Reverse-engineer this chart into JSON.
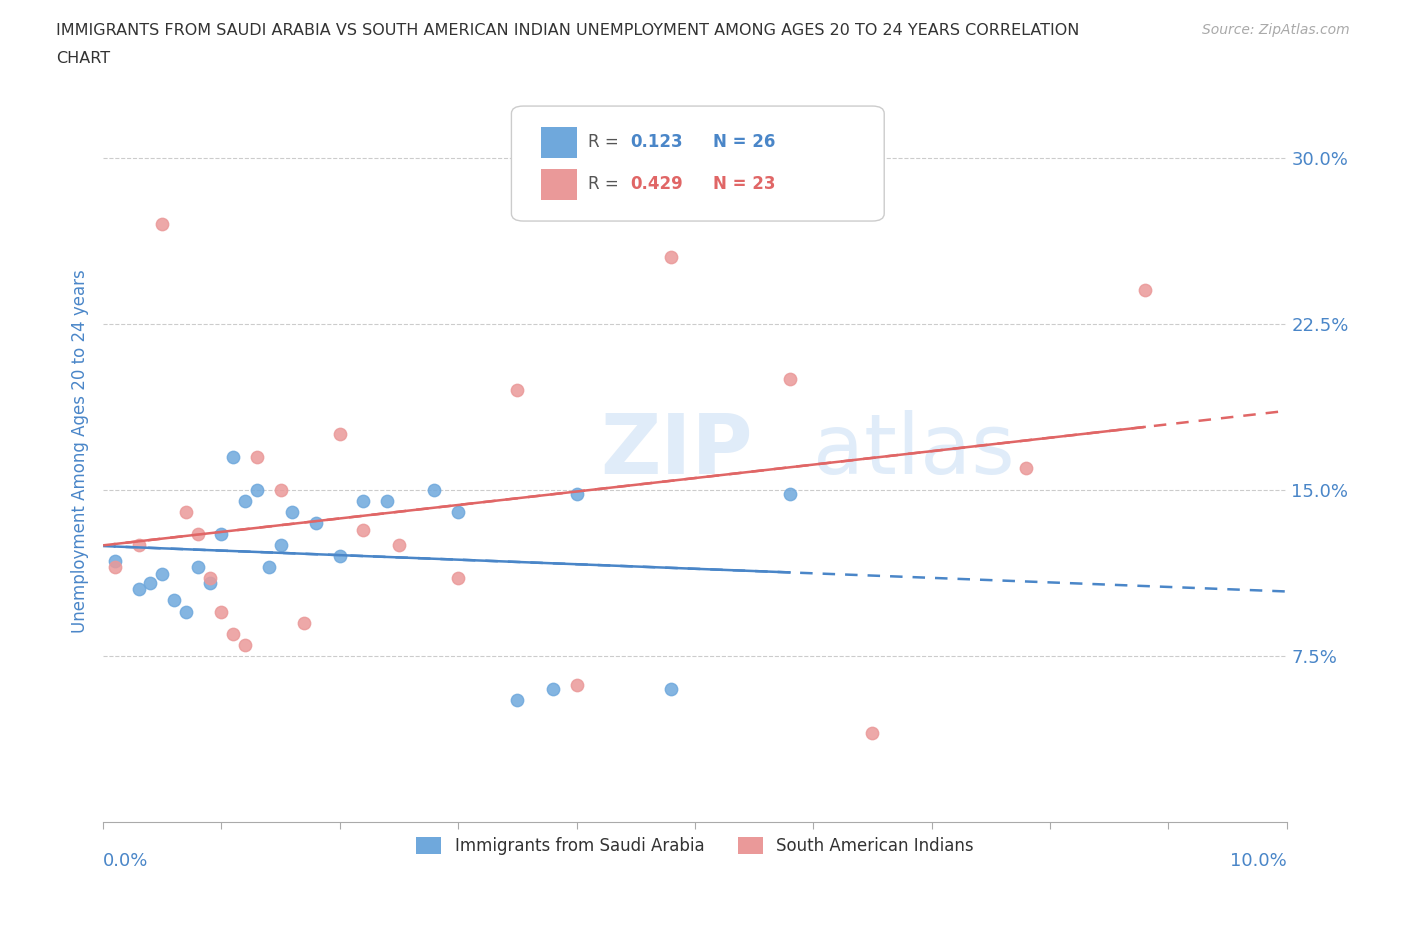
{
  "title_line1": "IMMIGRANTS FROM SAUDI ARABIA VS SOUTH AMERICAN INDIAN UNEMPLOYMENT AMONG AGES 20 TO 24 YEARS CORRELATION",
  "title_line2": "CHART",
  "source": "Source: ZipAtlas.com",
  "ylabel": "Unemployment Among Ages 20 to 24 years",
  "yticks": [
    0.075,
    0.15,
    0.225,
    0.3
  ],
  "ytick_labels": [
    "7.5%",
    "15.0%",
    "22.5%",
    "30.0%"
  ],
  "xlim": [
    0.0,
    0.1
  ],
  "ylim": [
    0.0,
    0.335
  ],
  "legend_v1": "0.123",
  "legend_n1": "N = 26",
  "legend_v2": "0.429",
  "legend_n2": "N = 23",
  "color_blue": "#6fa8dc",
  "color_pink": "#ea9999",
  "color_line_blue": "#4a86c8",
  "color_line_pink": "#e06666",
  "color_axis_label": "#4a86c8",
  "saudi_x": [
    0.001,
    0.003,
    0.004,
    0.005,
    0.006,
    0.007,
    0.008,
    0.009,
    0.01,
    0.011,
    0.012,
    0.013,
    0.014,
    0.015,
    0.016,
    0.018,
    0.02,
    0.022,
    0.024,
    0.028,
    0.03,
    0.035,
    0.038,
    0.04,
    0.048,
    0.058
  ],
  "saudi_y": [
    0.118,
    0.105,
    0.108,
    0.112,
    0.1,
    0.095,
    0.115,
    0.108,
    0.13,
    0.165,
    0.145,
    0.15,
    0.115,
    0.125,
    0.14,
    0.135,
    0.12,
    0.145,
    0.145,
    0.15,
    0.14,
    0.055,
    0.06,
    0.148,
    0.06,
    0.148
  ],
  "indian_x": [
    0.001,
    0.003,
    0.005,
    0.007,
    0.008,
    0.009,
    0.01,
    0.011,
    0.012,
    0.013,
    0.015,
    0.017,
    0.02,
    0.022,
    0.025,
    0.03,
    0.035,
    0.04,
    0.048,
    0.058,
    0.065,
    0.078,
    0.088
  ],
  "indian_y": [
    0.115,
    0.125,
    0.27,
    0.14,
    0.13,
    0.11,
    0.095,
    0.085,
    0.08,
    0.165,
    0.15,
    0.09,
    0.175,
    0.132,
    0.125,
    0.11,
    0.195,
    0.062,
    0.255,
    0.2,
    0.04,
    0.16,
    0.24
  ]
}
